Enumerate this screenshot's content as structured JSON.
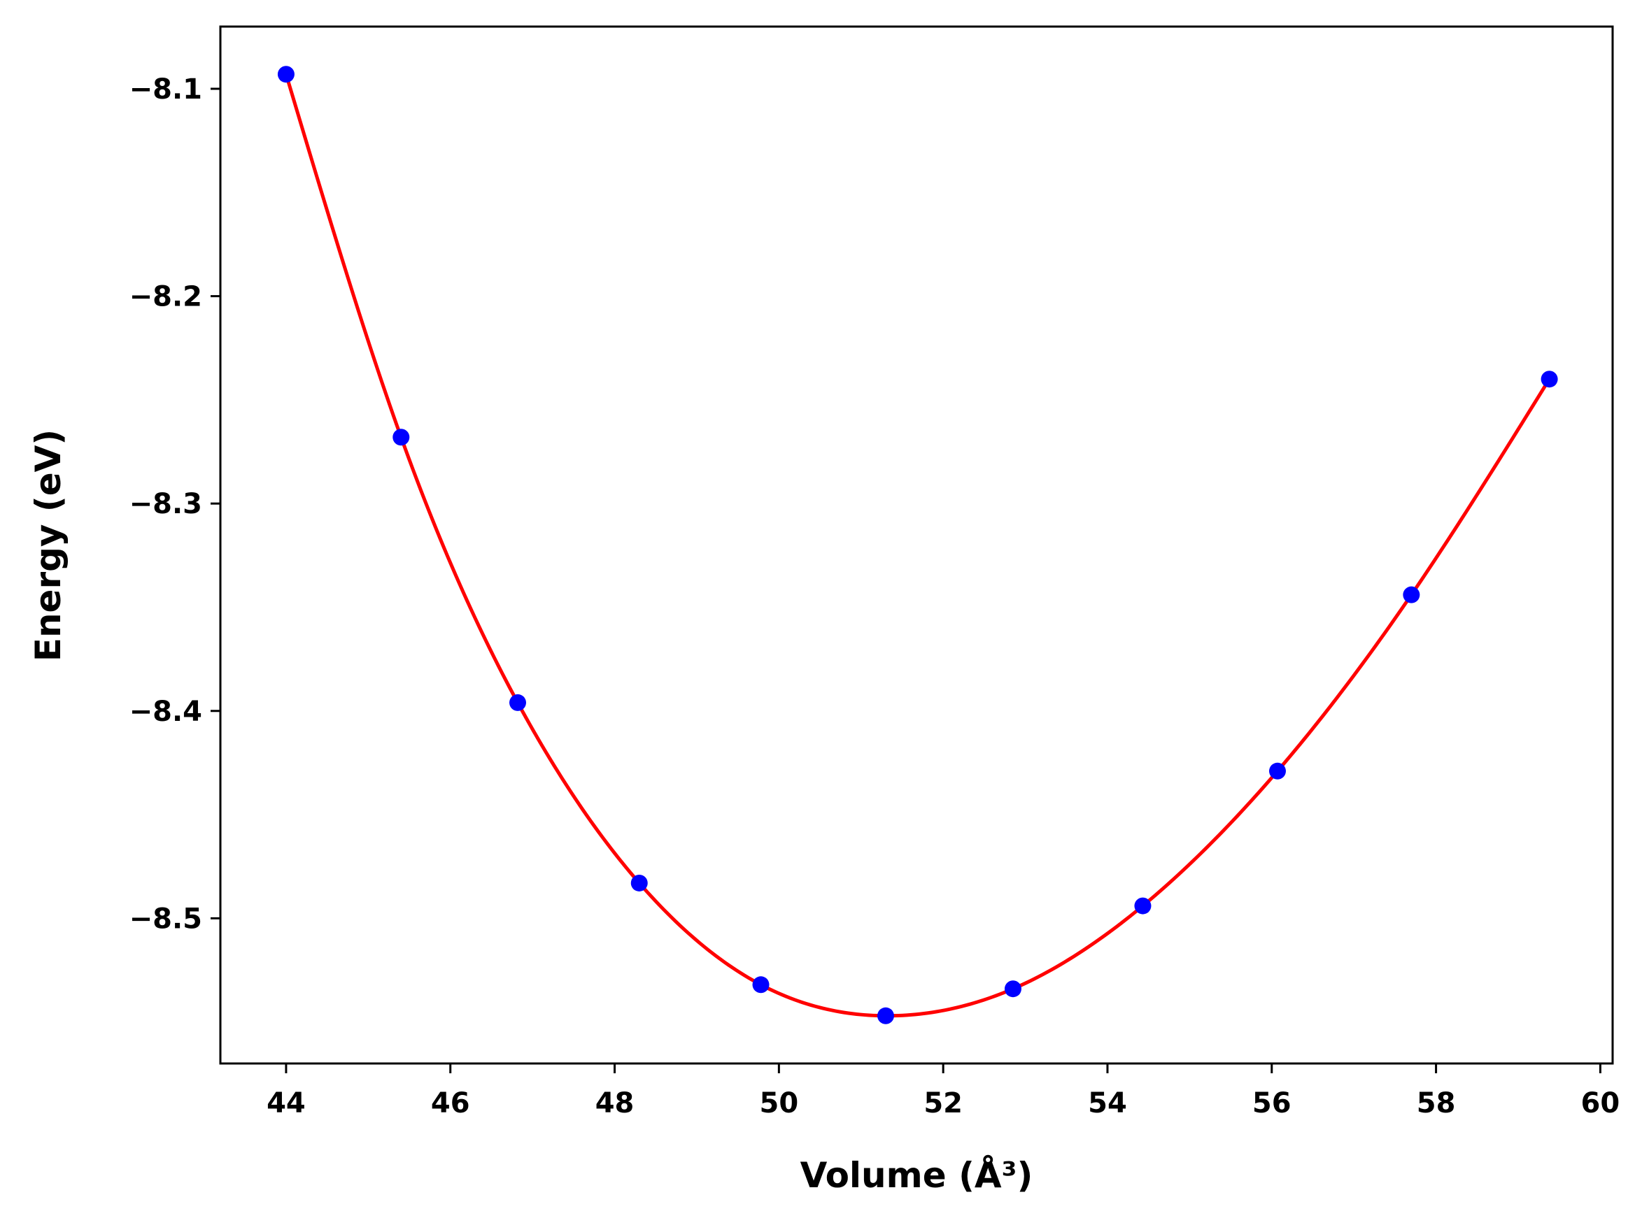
{
  "chart_data": {
    "type": "line",
    "title": "",
    "xlabel": "Volume (Å³)",
    "ylabel": "Energy (eV)",
    "xlim": [
      43.2,
      60.15
    ],
    "ylim": [
      -8.57,
      -8.07
    ],
    "xticks": [
      44,
      46,
      48,
      50,
      52,
      54,
      56,
      58,
      60
    ],
    "xtick_labels": [
      "44",
      "46",
      "48",
      "50",
      "52",
      "54",
      "56",
      "58",
      "60"
    ],
    "yticks": [
      -8.1,
      -8.2,
      -8.3,
      -8.4,
      -8.5
    ],
    "ytick_labels": [
      "−8.1",
      "−8.2",
      "−8.3",
      "−8.4",
      "−8.5"
    ],
    "grid": false,
    "legend": "none",
    "series": [
      {
        "kind": "scatter",
        "color": "#0000ff",
        "x": [
          44.0,
          45.4,
          46.82,
          48.3,
          49.78,
          51.3,
          52.85,
          54.43,
          56.07,
          57.7,
          59.38
        ],
        "y": [
          -8.093,
          -8.268,
          -8.396,
          -8.483,
          -8.532,
          -8.547,
          -8.534,
          -8.494,
          -8.429,
          -8.344,
          -8.24
        ]
      },
      {
        "kind": "fit-curve",
        "color": "#ff0000",
        "x": [
          44.0,
          45.4,
          46.82,
          48.3,
          49.78,
          51.3,
          52.85,
          54.43,
          56.07,
          57.7,
          59.38
        ],
        "y": [
          -8.093,
          -8.268,
          -8.396,
          -8.483,
          -8.532,
          -8.547,
          -8.534,
          -8.494,
          -8.429,
          -8.344,
          -8.24
        ]
      }
    ]
  }
}
